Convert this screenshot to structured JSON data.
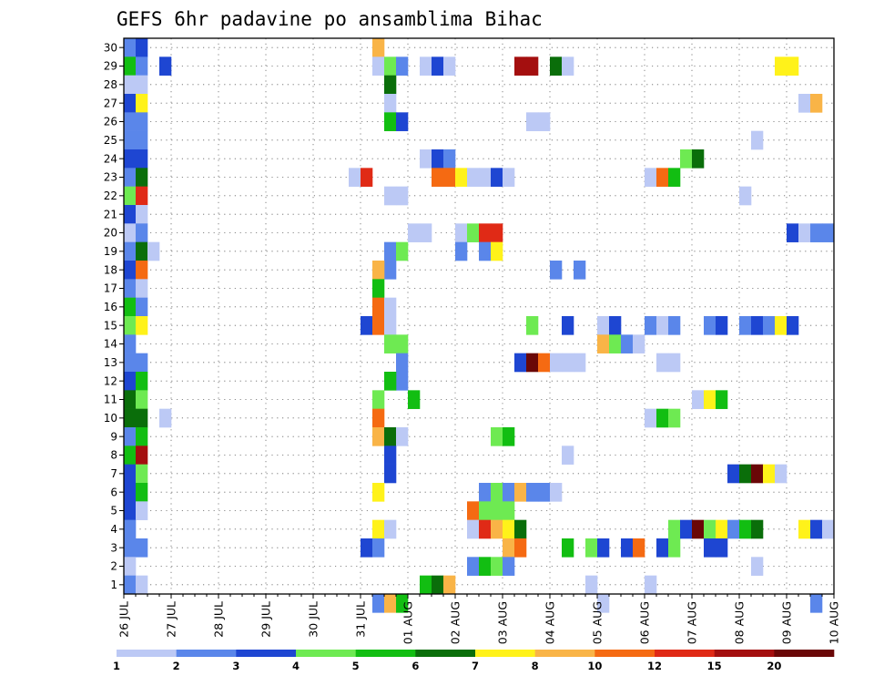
{
  "chart_data": {
    "type": "heatmap",
    "title": "GEFS 6hr padavine po ansamblima Bihac",
    "xlabel": "",
    "ylabel": "",
    "x_tick_labels": [
      "26 JUL",
      "27 JUL",
      "28 JUL",
      "29 JUL",
      "30 JUL",
      "31 JUL",
      "01 AUG",
      "02 AUG",
      "03 AUG",
      "04 AUG",
      "05 AUG",
      "06 AUG",
      "07 AUG",
      "08 AUG",
      "09 AUG",
      "10 AUG"
    ],
    "x_range_days": [
      0,
      15
    ],
    "y_tick_labels": [
      "1",
      "2",
      "3",
      "4",
      "5",
      "6",
      "7",
      "8",
      "9",
      "10",
      "11",
      "12",
      "13",
      "14",
      "15",
      "16",
      "17",
      "18",
      "19",
      "20",
      "21",
      "22",
      "23",
      "24",
      "25",
      "26",
      "27",
      "28",
      "29",
      "30"
    ],
    "grid": true,
    "colorbar": {
      "labels": [
        "1",
        "2",
        "3",
        "4",
        "5",
        "6",
        "7",
        "8",
        "10",
        "12",
        "15",
        "20"
      ],
      "colors": [
        "#bcc9f5",
        "#5a86ea",
        "#1e46d2",
        "#6eea52",
        "#12be12",
        "#0a6e0a",
        "#fff21a",
        "#f9b447",
        "#f56a12",
        "#e02a16",
        "#a40f0f",
        "#6a0707"
      ]
    },
    "cells_note": "each cell: [x_step (6h steps from 26 JUL 00z), member (1-30), color_class (1-12 matching colorbar)]",
    "cells": [
      [
        0,
        30,
        2
      ],
      [
        1,
        30,
        3
      ],
      [
        0,
        29,
        5
      ],
      [
        1,
        29,
        2
      ],
      [
        0,
        28,
        1
      ],
      [
        1,
        28,
        1
      ],
      [
        0,
        27,
        3
      ],
      [
        1,
        27,
        7
      ],
      [
        0,
        26,
        2
      ],
      [
        1,
        26,
        2
      ],
      [
        0,
        25,
        2
      ],
      [
        1,
        25,
        2
      ],
      [
        0,
        24,
        3
      ],
      [
        1,
        24,
        3
      ],
      [
        0,
        23,
        2
      ],
      [
        1,
        23,
        6
      ],
      [
        0,
        22,
        4
      ],
      [
        1,
        22,
        10
      ],
      [
        0,
        21,
        3
      ],
      [
        1,
        21,
        1
      ],
      [
        0,
        20,
        1
      ],
      [
        1,
        20,
        2
      ],
      [
        0,
        19,
        2
      ],
      [
        1,
        19,
        6
      ],
      [
        2,
        19,
        1
      ],
      [
        0,
        18,
        3
      ],
      [
        1,
        18,
        9
      ],
      [
        0,
        17,
        2
      ],
      [
        1,
        17,
        1
      ],
      [
        0,
        16,
        5
      ],
      [
        1,
        16,
        2
      ],
      [
        0,
        15,
        4
      ],
      [
        1,
        15,
        7
      ],
      [
        0,
        14,
        2
      ],
      [
        0,
        13,
        2
      ],
      [
        1,
        13,
        2
      ],
      [
        0,
        12,
        3
      ],
      [
        1,
        12,
        5
      ],
      [
        0,
        11,
        6
      ],
      [
        1,
        11,
        4
      ],
      [
        0,
        10,
        6
      ],
      [
        1,
        10,
        6
      ],
      [
        0,
        9,
        2
      ],
      [
        1,
        9,
        5
      ],
      [
        0,
        8,
        5
      ],
      [
        1,
        8,
        11
      ],
      [
        0,
        7,
        3
      ],
      [
        1,
        7,
        4
      ],
      [
        0,
        6,
        3
      ],
      [
        1,
        6,
        5
      ],
      [
        0,
        5,
        3
      ],
      [
        1,
        5,
        1
      ],
      [
        0,
        4,
        2
      ],
      [
        0,
        3,
        2
      ],
      [
        1,
        3,
        2
      ],
      [
        0,
        2,
        1
      ],
      [
        0,
        1,
        2
      ],
      [
        1,
        1,
        1
      ],
      [
        3,
        29,
        3
      ],
      [
        3,
        10,
        1
      ],
      [
        19,
        23,
        1
      ],
      [
        20,
        23,
        10
      ],
      [
        21,
        30,
        8
      ],
      [
        21,
        29,
        1
      ],
      [
        22,
        29,
        4
      ],
      [
        23,
        29,
        2
      ],
      [
        22,
        28,
        6
      ],
      [
        22,
        27,
        1
      ],
      [
        22,
        26,
        5
      ],
      [
        23,
        26,
        3
      ],
      [
        22,
        22,
        1
      ],
      [
        23,
        22,
        1
      ],
      [
        22,
        19,
        2
      ],
      [
        23,
        19,
        4
      ],
      [
        22,
        18,
        2
      ],
      [
        21,
        18,
        8
      ],
      [
        21,
        17,
        5
      ],
      [
        21,
        16,
        9
      ],
      [
        22,
        16,
        1
      ],
      [
        20,
        15,
        3
      ],
      [
        21,
        15,
        9
      ],
      [
        22,
        15,
        1
      ],
      [
        22,
        14,
        4
      ],
      [
        23,
        14,
        4
      ],
      [
        23,
        13,
        2
      ],
      [
        23,
        12,
        2
      ],
      [
        22,
        12,
        5
      ],
      [
        21,
        11,
        4
      ],
      [
        24,
        11,
        5
      ],
      [
        21,
        10,
        9
      ],
      [
        21,
        9,
        8
      ],
      [
        22,
        9,
        6
      ],
      [
        23,
        9,
        1
      ],
      [
        22,
        8,
        3
      ],
      [
        22,
        7,
        3
      ],
      [
        21,
        6,
        7
      ],
      [
        21,
        4,
        7
      ],
      [
        22,
        4,
        1
      ],
      [
        20,
        3,
        3
      ],
      [
        21,
        3,
        2
      ],
      [
        21,
        0,
        2
      ],
      [
        22,
        0,
        8
      ],
      [
        23,
        0,
        5
      ],
      [
        25,
        29,
        1
      ],
      [
        26,
        29,
        3
      ],
      [
        27,
        29,
        1
      ],
      [
        25,
        24,
        1
      ],
      [
        26,
        24,
        3
      ],
      [
        27,
        24,
        2
      ],
      [
        26,
        23,
        9
      ],
      [
        27,
        23,
        9
      ],
      [
        28,
        23,
        7
      ],
      [
        29,
        23,
        1
      ],
      [
        30,
        23,
        1
      ],
      [
        31,
        23,
        3
      ],
      [
        32,
        23,
        1
      ],
      [
        24,
        20,
        1
      ],
      [
        25,
        20,
        1
      ],
      [
        28,
        20,
        1
      ],
      [
        29,
        20,
        4
      ],
      [
        30,
        20,
        10
      ],
      [
        31,
        20,
        10
      ],
      [
        28,
        19,
        2
      ],
      [
        30,
        19,
        2
      ],
      [
        31,
        19,
        7
      ],
      [
        25,
        1,
        5
      ],
      [
        26,
        1,
        6
      ],
      [
        27,
        1,
        8
      ],
      [
        31,
        9,
        4
      ],
      [
        32,
        9,
        5
      ],
      [
        30,
        6,
        2
      ],
      [
        31,
        6,
        4
      ],
      [
        32,
        6,
        2
      ],
      [
        33,
        6,
        8
      ],
      [
        34,
        6,
        2
      ],
      [
        35,
        6,
        2
      ],
      [
        36,
        6,
        1
      ],
      [
        29,
        5,
        9
      ],
      [
        30,
        5,
        4
      ],
      [
        31,
        5,
        4
      ],
      [
        32,
        5,
        4
      ],
      [
        29,
        4,
        1
      ],
      [
        30,
        4,
        10
      ],
      [
        31,
        4,
        8
      ],
      [
        32,
        4,
        7
      ],
      [
        33,
        4,
        6
      ],
      [
        32,
        3,
        8
      ],
      [
        33,
        3,
        9
      ],
      [
        29,
        2,
        2
      ],
      [
        30,
        2,
        5
      ],
      [
        31,
        2,
        4
      ],
      [
        32,
        2,
        2
      ],
      [
        33,
        13,
        3
      ],
      [
        34,
        13,
        12
      ],
      [
        35,
        13,
        9
      ],
      [
        36,
        13,
        1
      ],
      [
        37,
        13,
        1
      ],
      [
        38,
        13,
        1
      ],
      [
        34,
        15,
        4
      ],
      [
        37,
        15,
        3
      ],
      [
        33,
        29,
        11
      ],
      [
        34,
        29,
        11
      ],
      [
        36,
        29,
        6
      ],
      [
        37,
        29,
        1
      ],
      [
        34,
        26,
        1
      ],
      [
        35,
        26,
        1
      ],
      [
        36,
        18,
        2
      ],
      [
        38,
        18,
        2
      ],
      [
        37,
        8,
        1
      ],
      [
        37,
        3,
        5
      ],
      [
        39,
        3,
        4
      ],
      [
        40,
        3,
        3
      ],
      [
        39,
        1,
        1
      ],
      [
        40,
        0,
        1
      ],
      [
        40,
        15,
        1
      ],
      [
        41,
        15,
        3
      ],
      [
        40,
        14,
        8
      ],
      [
        41,
        14,
        4
      ],
      [
        42,
        14,
        2
      ],
      [
        43,
        14,
        1
      ],
      [
        42,
        3,
        3
      ],
      [
        43,
        3,
        9
      ],
      [
        44,
        23,
        1
      ],
      [
        45,
        23,
        9
      ],
      [
        46,
        23,
        5
      ],
      [
        44,
        15,
        2
      ],
      [
        45,
        15,
        1
      ],
      [
        46,
        15,
        2
      ],
      [
        45,
        13,
        1
      ],
      [
        46,
        13,
        1
      ],
      [
        44,
        10,
        1
      ],
      [
        45,
        10,
        5
      ],
      [
        46,
        10,
        4
      ],
      [
        44,
        1,
        1
      ],
      [
        45,
        3,
        3
      ],
      [
        46,
        3,
        4
      ],
      [
        46,
        4,
        4
      ],
      [
        47,
        4,
        3
      ],
      [
        47,
        24,
        4
      ],
      [
        48,
        24,
        6
      ],
      [
        48,
        11,
        1
      ],
      [
        49,
        11,
        7
      ],
      [
        50,
        11,
        5
      ],
      [
        48,
        4,
        12
      ],
      [
        49,
        4,
        4
      ],
      [
        50,
        4,
        7
      ],
      [
        51,
        4,
        2
      ],
      [
        49,
        15,
        2
      ],
      [
        50,
        15,
        3
      ],
      [
        49,
        3,
        3
      ],
      [
        50,
        3,
        3
      ],
      [
        51,
        7,
        3
      ],
      [
        52,
        7,
        6
      ],
      [
        53,
        7,
        12
      ],
      [
        54,
        7,
        7
      ],
      [
        55,
        7,
        1
      ],
      [
        52,
        15,
        2
      ],
      [
        53,
        15,
        3
      ],
      [
        54,
        15,
        2
      ],
      [
        55,
        15,
        7
      ],
      [
        56,
        15,
        3
      ],
      [
        52,
        4,
        5
      ],
      [
        53,
        4,
        6
      ],
      [
        52,
        22,
        1
      ],
      [
        53,
        25,
        1
      ],
      [
        53,
        2,
        1
      ],
      [
        55,
        29,
        7
      ],
      [
        56,
        29,
        7
      ],
      [
        57,
        27,
        1
      ],
      [
        58,
        27,
        8
      ],
      [
        56,
        20,
        3
      ],
      [
        57,
        20,
        1
      ],
      [
        58,
        20,
        2
      ],
      [
        59,
        20,
        2
      ],
      [
        57,
        4,
        7
      ],
      [
        58,
        4,
        3
      ],
      [
        59,
        4,
        1
      ],
      [
        58,
        0,
        2
      ]
    ]
  }
}
